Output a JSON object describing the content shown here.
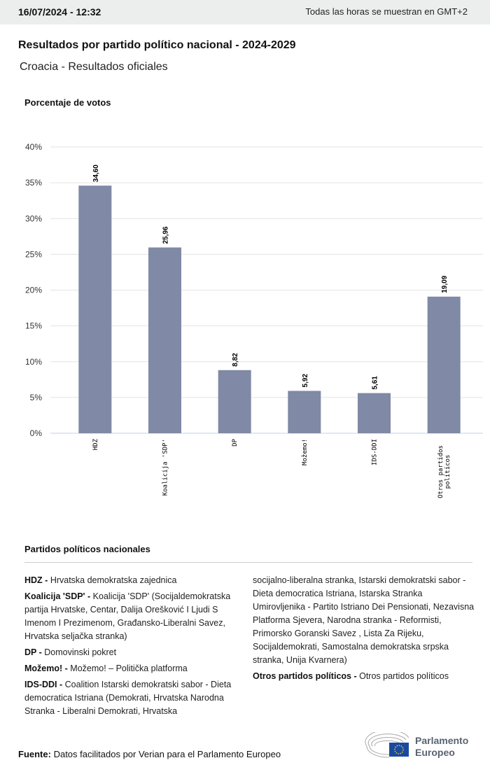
{
  "header": {
    "datetime": "16/07/2024 - 12:32",
    "timezone_note": "Todas las horas se muestran en GMT+2"
  },
  "title": "Resultados por partido político nacional - 2024-2029",
  "subtitle": "Croacia - Resultados oficiales",
  "chart_data": {
    "type": "bar",
    "ylabel": "Porcentaje de votos",
    "categories": [
      "HDZ",
      "Koalicija 'SDP'",
      "DP",
      "Možemo!",
      "IDS-DDI",
      "Otros partidos políticos"
    ],
    "values": [
      34.6,
      25.96,
      8.82,
      5.92,
      5.61,
      19.09
    ],
    "data_labels": [
      "34,60",
      "25,96",
      "8,82",
      "5,92",
      "5,61",
      "19,09"
    ],
    "ylim": [
      0,
      40
    ],
    "yticks": [
      "0%",
      "5%",
      "10%",
      "15%",
      "20%",
      "25%",
      "30%",
      "35%",
      "40%"
    ],
    "grid": true,
    "bar_color": "#8089a5"
  },
  "legend": {
    "title": "Partidos políticos nacionales",
    "items": [
      {
        "abbr": "HDZ -",
        "name": "Hrvatska demokratska zajednica"
      },
      {
        "abbr": "Koalicija 'SDP' -",
        "name": "Koalicija 'SDP' (Socijaldemokratska partija Hrvatske, Centar, Dalija Orešković I Ljudi S Imenom I Prezimenom, Građansko-Liberalni Savez, Hrvatska seljačka stranka)"
      },
      {
        "abbr": "DP -",
        "name": "Domovinski pokret"
      },
      {
        "abbr": "Možemo! -",
        "name": "Možemo! – Politička platforma"
      },
      {
        "abbr": "IDS-DDI -",
        "name": "Coalition Istarski demokratski sabor - Dieta democratica Istriana (Demokrati, Hrvatska Narodna Stranka - Liberalni Demokrati, Hrvatska"
      },
      {
        "abbr": "",
        "name": "socijalno-liberalna stranka, Istarski demokratski sabor - Dieta democratica Istriana, Istarska Stranka Umirovljenika - Partito Istriano Dei Pensionati, Nezavisna Platforma Sjevera, Narodna stranka - Reformisti, Primorsko Goranski Savez , Lista Za Rijeku, Socijaldemokrati, Samostalna demokratska srpska stranka, Unija Kvarnera)"
      },
      {
        "abbr": "Otros partidos políticos -",
        "name": "Otros partidos políticos"
      }
    ]
  },
  "footer": {
    "source_label": "Fuente:",
    "source_text": "Datos facilitados por Verian para el Parlamento Europeo",
    "logo_text": "Parlamento Europeo"
  }
}
